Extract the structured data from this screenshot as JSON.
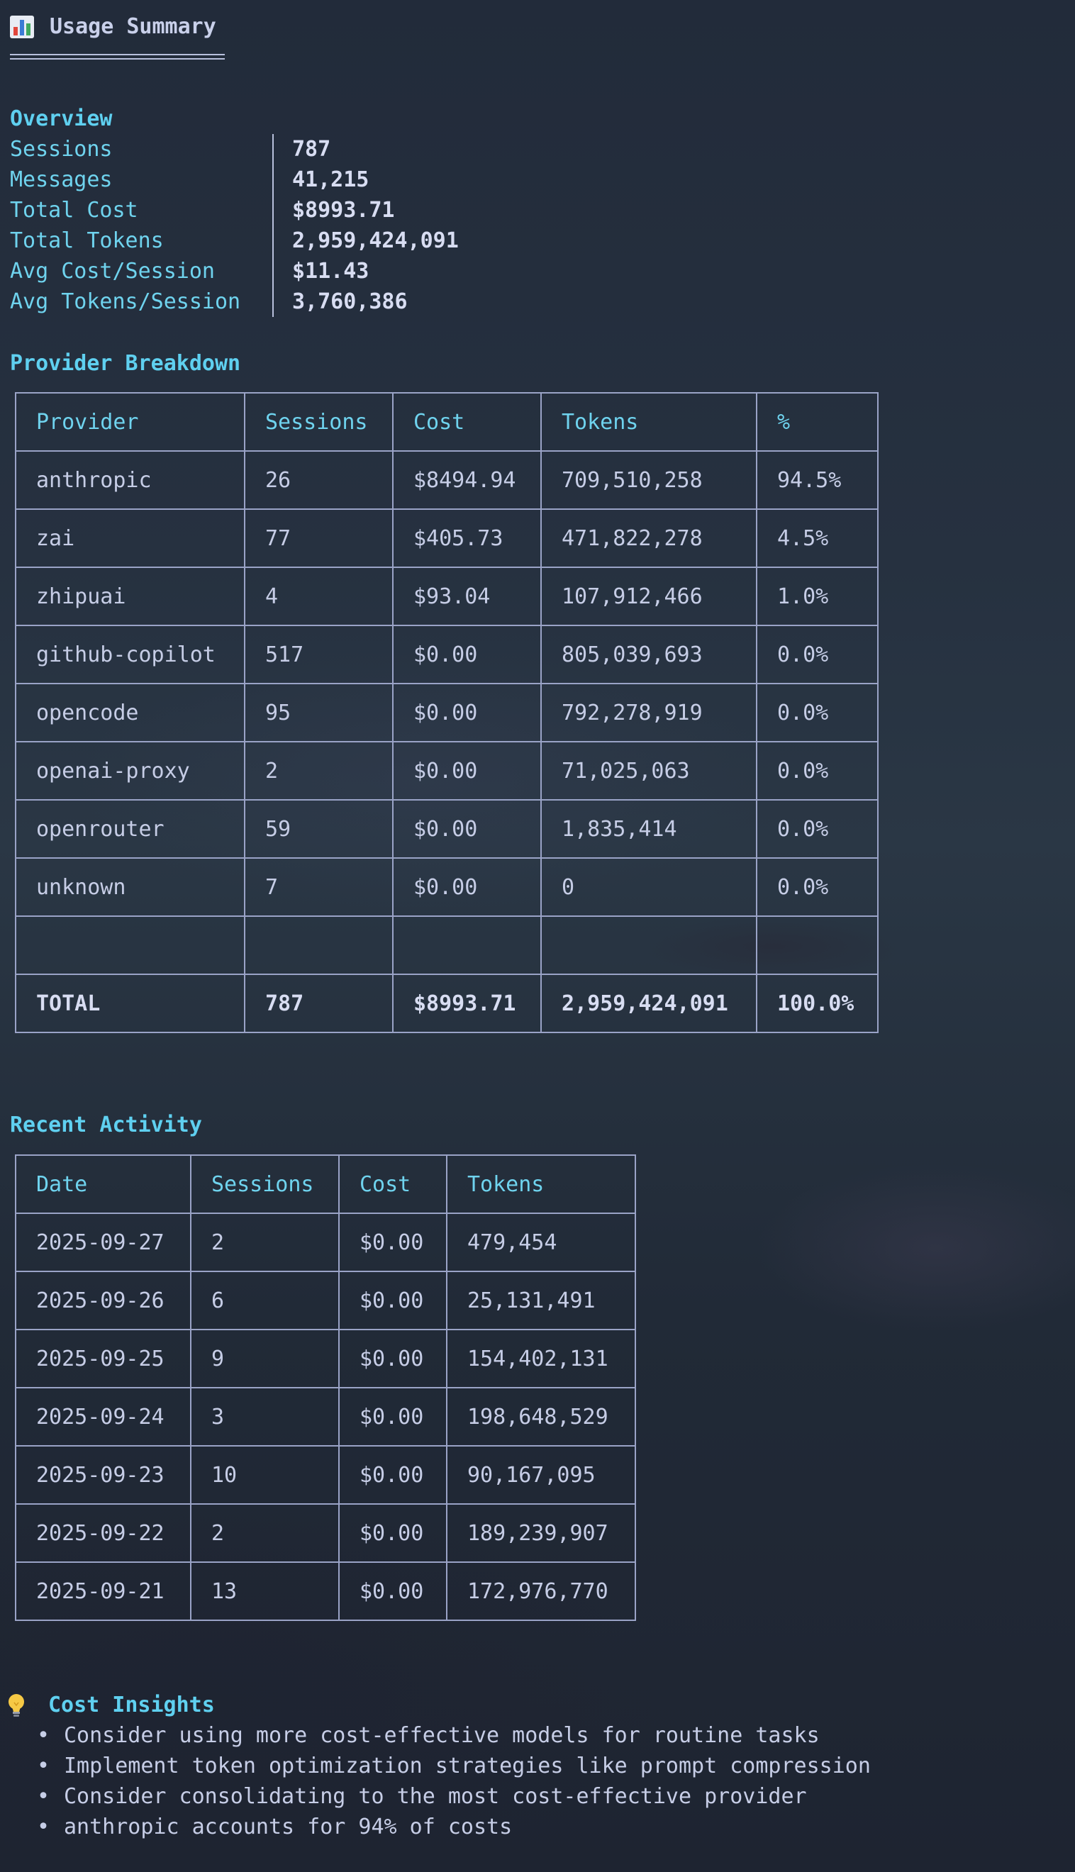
{
  "header": {
    "icon": "bar-chart-icon",
    "title": "Usage Summary"
  },
  "overview": {
    "title": "Overview",
    "rows": [
      {
        "key": "Sessions",
        "value": "787"
      },
      {
        "key": "Messages",
        "value": "41,215"
      },
      {
        "key": "Total Cost",
        "value": "$8993.71"
      },
      {
        "key": "Total Tokens",
        "value": "2,959,424,091"
      },
      {
        "key": "Avg Cost/Session",
        "value": "$11.43"
      },
      {
        "key": "Avg Tokens/Session",
        "value": "3,760,386"
      }
    ]
  },
  "providers": {
    "title": "Provider Breakdown",
    "columns": [
      "Provider",
      "Sessions",
      "Cost",
      "Tokens",
      "%"
    ],
    "rows": [
      [
        "anthropic",
        "26",
        "$8494.94",
        "709,510,258",
        "94.5%"
      ],
      [
        "zai",
        "77",
        "$405.73",
        "471,822,278",
        "4.5%"
      ],
      [
        "zhipuai",
        "4",
        "$93.04",
        "107,912,466",
        "1.0%"
      ],
      [
        "github-copilot",
        "517",
        "$0.00",
        "805,039,693",
        "0.0%"
      ],
      [
        "opencode",
        "95",
        "$0.00",
        "792,278,919",
        "0.0%"
      ],
      [
        "openai-proxy",
        "2",
        "$0.00",
        "71,025,063",
        "0.0%"
      ],
      [
        "openrouter",
        "59",
        "$0.00",
        "1,835,414",
        "0.0%"
      ],
      [
        "unknown",
        "7",
        "$0.00",
        "0",
        "0.0%"
      ],
      [
        "",
        "",
        "",
        "",
        ""
      ]
    ],
    "total": [
      "TOTAL",
      "787",
      "$8993.71",
      "2,959,424,091",
      "100.0%"
    ]
  },
  "recent": {
    "title": "Recent Activity",
    "columns": [
      "Date",
      "Sessions",
      "Cost",
      "Tokens"
    ],
    "rows": [
      [
        "2025-09-27",
        "2",
        "$0.00",
        "479,454"
      ],
      [
        "2025-09-26",
        "6",
        "$0.00",
        "25,131,491"
      ],
      [
        "2025-09-25",
        "9",
        "$0.00",
        "154,402,131"
      ],
      [
        "2025-09-24",
        "3",
        "$0.00",
        "198,648,529"
      ],
      [
        "2025-09-23",
        "10",
        "$0.00",
        "90,167,095"
      ],
      [
        "2025-09-22",
        "2",
        "$0.00",
        "189,239,907"
      ],
      [
        "2025-09-21",
        "13",
        "$0.00",
        "172,976,770"
      ]
    ]
  },
  "insights": {
    "icon": "lightbulb-icon",
    "title": "Cost Insights",
    "bullet": "•",
    "items": [
      "Consider using more cost-effective models for routine tasks",
      "Implement token optimization strategies like prompt compression",
      "Consider consolidating to the most cost-effective provider",
      "anthropic accounts for 94% of costs"
    ]
  },
  "colors": {
    "accent": "#5fd0f0",
    "border": "#9aa3c7",
    "text": "#c6cde6"
  }
}
